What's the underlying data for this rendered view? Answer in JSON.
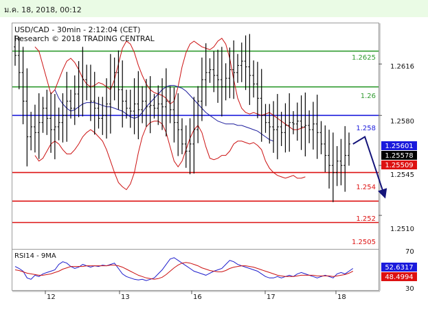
{
  "header": {
    "date_time": "ม.ค. 18, 2018, 00:12"
  },
  "colors": {
    "green": "#2e9a2e",
    "blue": "#1a1adc",
    "red": "#dd1111",
    "navy": "#14147a",
    "price": "#000000",
    "bollinger": "#cc1111",
    "moving_average": "#1c1c9c",
    "rsi": "#1c1ccc",
    "rsi_ma": "#cc1111"
  },
  "chart_data": [
    {
      "type": "candlestick",
      "title": "USD/CAD - 30min - 2:12:04 (CET)",
      "subtitle": "Research © 2018 TRADING CENTRAL",
      "x_labels": [
        "12",
        "13",
        "16",
        "17",
        "18"
      ],
      "y_ticks": [
        "1.2616",
        "1.2580",
        "1.2545",
        "1.2510"
      ],
      "ylim": [
        1.2487,
        1.2644
      ],
      "levels": [
        {
          "label": "1.2625",
          "value": 1.2625,
          "color": "green"
        },
        {
          "label": "1.26",
          "value": 1.26,
          "color": "green"
        },
        {
          "label": "1.258",
          "value": 1.258,
          "color": "blue"
        },
        {
          "label": "1.254",
          "value": 1.254,
          "color": "red"
        },
        {
          "label": "1.252",
          "value": 1.252,
          "color": "red"
        },
        {
          "label": "1.2505",
          "value": 1.2505,
          "color": "red"
        }
      ],
      "price_tags": [
        {
          "label": "1.25601",
          "value": 1.25601,
          "color": "blue"
        },
        {
          "label": "1.25578",
          "value": 1.25578,
          "color": "price"
        },
        {
          "label": "1.25509",
          "value": 1.25509,
          "color": "red"
        }
      ],
      "close": [
        1.2622,
        1.261,
        1.259,
        1.2565,
        1.2572,
        1.2568,
        1.2575,
        1.2585,
        1.2578,
        1.257,
        1.2572,
        1.2575,
        1.258,
        1.259,
        1.2585,
        1.2595,
        1.26,
        1.2605,
        1.26,
        1.259,
        1.2585,
        1.2578,
        1.258,
        1.2588,
        1.26,
        1.261,
        1.2598,
        1.259,
        1.2585,
        1.2583,
        1.2588,
        1.2584,
        1.259,
        1.2586,
        1.2587,
        1.2585,
        1.2588,
        1.2586,
        1.259,
        1.2584,
        1.2575,
        1.257,
        1.256,
        1.2555,
        1.256,
        1.257,
        1.259,
        1.2605,
        1.261,
        1.2612,
        1.2608,
        1.2605,
        1.26,
        1.2606,
        1.2612,
        1.261,
        1.2615,
        1.2618,
        1.2614,
        1.2608,
        1.2602,
        1.2592,
        1.258,
        1.2575,
        1.2572,
        1.257,
        1.2572,
        1.2568,
        1.2573,
        1.2575,
        1.2574,
        1.2576,
        1.2572,
        1.2573,
        1.257,
        1.2574,
        1.2568,
        1.256,
        1.2552,
        1.2545,
        1.254,
        1.2548,
        1.2545,
        1.2552,
        1.256
      ],
      "ma": {
        "x_start": 10,
        "values": [
          1.2598,
          1.2592,
          1.2588,
          1.2585,
          1.2583,
          1.2584,
          1.2586,
          1.2588,
          1.2589,
          1.2589,
          1.2589,
          1.2588,
          1.2587,
          1.2586,
          1.2586,
          1.2585,
          1.2584,
          1.2583,
          1.2581,
          1.2579,
          1.2578,
          1.2579,
          1.2582,
          1.2586,
          1.2589,
          1.2592,
          1.2595,
          1.2598,
          1.26,
          1.2601,
          1.2601,
          1.26,
          1.2599,
          1.2597,
          1.2594,
          1.2591,
          1.2588,
          1.2585,
          1.2582,
          1.258,
          1.2578,
          1.2576,
          1.2575,
          1.2574,
          1.2574,
          1.2574,
          1.2573,
          1.2573,
          1.2572,
          1.2571,
          1.257,
          1.2569,
          1.2567,
          1.2565,
          1.2563,
          1.2562
        ]
      },
      "bollinger_upper": {
        "x_start": 5,
        "values": [
          1.2628,
          1.2625,
          1.2615,
          1.2605,
          1.2595,
          1.2598,
          1.2605,
          1.2612,
          1.2618,
          1.262,
          1.2617,
          1.2612,
          1.2606,
          1.2602,
          1.26,
          1.2601,
          1.2603,
          1.2602,
          1.26,
          1.2598,
          1.2605,
          1.2616,
          1.2627,
          1.2632,
          1.263,
          1.2624,
          1.2615,
          1.2608,
          1.2602,
          1.2598,
          1.2596,
          1.2595,
          1.2594,
          1.2592,
          1.2588,
          1.259,
          1.26,
          1.2614,
          1.2624,
          1.263,
          1.2632,
          1.263,
          1.2628,
          1.2627,
          1.2626,
          1.2628,
          1.2632,
          1.2634,
          1.263,
          1.262,
          1.2605,
          1.2592,
          1.2585,
          1.2582,
          1.2581,
          1.2582,
          1.2581,
          1.258,
          1.2581,
          1.2582,
          1.258,
          1.2578,
          1.2576,
          1.2574,
          1.2572,
          1.257,
          1.257,
          1.2571,
          1.2572
        ]
      },
      "bollinger_lower": {
        "x_start": 5,
        "values": [
          1.2552,
          1.2548,
          1.255,
          1.2555,
          1.256,
          1.2562,
          1.256,
          1.2556,
          1.2553,
          1.2553,
          1.2556,
          1.256,
          1.2565,
          1.2568,
          1.257,
          1.2568,
          1.2565,
          1.2562,
          1.2556,
          1.2548,
          1.254,
          1.2533,
          1.253,
          1.2528,
          1.2532,
          1.254,
          1.2554,
          1.2565,
          1.2572,
          1.2575,
          1.2576,
          1.2576,
          1.2574,
          1.2568,
          1.2558,
          1.2548,
          1.2544,
          1.2548,
          1.2556,
          1.2564,
          1.257,
          1.2573,
          1.2568,
          1.2558,
          1.255,
          1.2549,
          1.255,
          1.2552,
          1.2552,
          1.2555,
          1.256,
          1.2562,
          1.2562,
          1.2561,
          1.256,
          1.2561,
          1.2559,
          1.2556,
          1.2548,
          1.2543,
          1.254,
          1.2538,
          1.2537,
          1.2536,
          1.2537,
          1.2538,
          1.2536,
          1.2536,
          1.2537
        ]
      },
      "forecast_path": [
        [
          85,
          1.256
        ],
        [
          88,
          1.2565
        ],
        [
          93,
          1.2523
        ]
      ]
    },
    {
      "type": "line",
      "title": "RSI14 - 9MA",
      "y_ticks": [
        "70",
        "30"
      ],
      "ylim": [
        20,
        80
      ],
      "tags": [
        {
          "label": "52.6317",
          "value": 52.6317,
          "color": "blue"
        },
        {
          "label": "48.4994",
          "value": 48.4994,
          "color": "red"
        }
      ],
      "series": [
        {
          "color": "rsi",
          "values": [
            55,
            52,
            48,
            38,
            36,
            42,
            40,
            44,
            46,
            48,
            50,
            58,
            62,
            60,
            55,
            52,
            54,
            58,
            56,
            54,
            56,
            55,
            57,
            56,
            58,
            60,
            52,
            44,
            40,
            38,
            36,
            35,
            36,
            34,
            36,
            38,
            44,
            50,
            58,
            66,
            68,
            64,
            60,
            56,
            52,
            48,
            46,
            44,
            42,
            45,
            48,
            50,
            52,
            58,
            64,
            62,
            58,
            56,
            54,
            52,
            50,
            48,
            44,
            40,
            38,
            38,
            40,
            38,
            40,
            42,
            40,
            44,
            46,
            44,
            42,
            40,
            38,
            40,
            42,
            40,
            38,
            44,
            46,
            44,
            48,
            52
          ]
        },
        {
          "color": "rsi_ma",
          "values": [
            50,
            49,
            47,
            45,
            44,
            43,
            42,
            42,
            43,
            44,
            46,
            48,
            51,
            53,
            55,
            55,
            55,
            55,
            56,
            56,
            56,
            56,
            56,
            56,
            57,
            57,
            56,
            54,
            51,
            48,
            45,
            42,
            40,
            38,
            37,
            36,
            37,
            39,
            43,
            48,
            53,
            57,
            60,
            61,
            60,
            58,
            56,
            53,
            51,
            49,
            48,
            47,
            47,
            49,
            52,
            54,
            55,
            56,
            56,
            55,
            54,
            52,
            50,
            48,
            46,
            44,
            42,
            41,
            40,
            40,
            40,
            41,
            42,
            42,
            42,
            42,
            41,
            41,
            41,
            41,
            40,
            41,
            42,
            43,
            45,
            48
          ]
        }
      ]
    }
  ]
}
